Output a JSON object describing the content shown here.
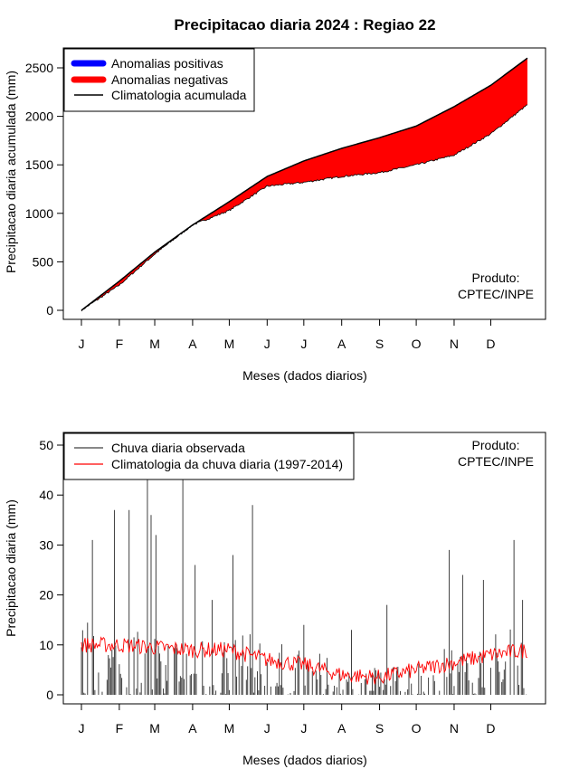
{
  "title": "Precipitacao diaria 2024 : Regiao 22",
  "credit": {
    "line1": "Produto:",
    "line2": "CPTEC/INPE"
  },
  "month_labels": [
    "J",
    "F",
    "M",
    "A",
    "M",
    "J",
    "J",
    "A",
    "S",
    "O",
    "N",
    "D"
  ],
  "colors": {
    "positive": "#0000ff",
    "negative": "#ff0000",
    "climatology_line": "#000000",
    "observed_bars": "#404040",
    "climatology_daily": "#ff0000"
  },
  "chart_data": [
    {
      "type": "area",
      "ylabel": "Precipitacao diaria acumulada (mm)",
      "xlabel": "Meses (dados diarios)",
      "ylim": [
        0,
        2600
      ],
      "yticks": [
        0,
        500,
        1000,
        1500,
        2000,
        2500
      ],
      "xlim_days": [
        1,
        366
      ],
      "legend_position": "top-left",
      "legend": [
        {
          "label": "Anomalias positivas",
          "color": "#0000ff",
          "style": "thick-line"
        },
        {
          "label": "Anomalias negativas",
          "color": "#ff0000",
          "style": "thick-line"
        },
        {
          "label": "Climatologia acumulada",
          "color": "#000000",
          "style": "line"
        }
      ],
      "series": [
        {
          "name": "Climatologia acumulada",
          "x_day": [
            1,
            32,
            61,
            92,
            122,
            153,
            183,
            214,
            245,
            275,
            306,
            336,
            366
          ],
          "values": [
            0,
            300,
            600,
            880,
            1120,
            1380,
            1540,
            1670,
            1780,
            1900,
            2100,
            2320,
            2600
          ]
        },
        {
          "name": "observed cumulative",
          "x_day": [
            1,
            32,
            61,
            92,
            122,
            153,
            183,
            214,
            245,
            275,
            306,
            336,
            366
          ],
          "values": [
            0,
            260,
            580,
            880,
            1030,
            1280,
            1320,
            1380,
            1420,
            1500,
            1600,
            1820,
            2120
          ]
        }
      ]
    },
    {
      "type": "bar",
      "ylabel": "Precipitacao diaria (mm)",
      "xlabel": "Meses (dados diarios)",
      "ylim": [
        0,
        50
      ],
      "yticks": [
        0,
        10,
        20,
        30,
        40,
        50
      ],
      "xlim_days": [
        1,
        366
      ],
      "legend_position": "top-left",
      "legend": [
        {
          "label": "Chuva diaria observada",
          "color": "#404040",
          "style": "line"
        },
        {
          "label": "Climatologia da chuva diaria (1997-2014)",
          "color": "#ff0000",
          "style": "line"
        }
      ],
      "peaks": [
        {
          "day": 10,
          "value": 31
        },
        {
          "day": 28,
          "value": 37
        },
        {
          "day": 40,
          "value": 37
        },
        {
          "day": 55,
          "value": 44
        },
        {
          "day": 58,
          "value": 36
        },
        {
          "day": 62,
          "value": 32
        },
        {
          "day": 84,
          "value": 44
        },
        {
          "day": 94,
          "value": 26
        },
        {
          "day": 108,
          "value": 19
        },
        {
          "day": 125,
          "value": 28
        },
        {
          "day": 141,
          "value": 38
        },
        {
          "day": 183,
          "value": 14
        },
        {
          "day": 222,
          "value": 13
        },
        {
          "day": 251,
          "value": 18
        },
        {
          "day": 302,
          "value": 29
        },
        {
          "day": 313,
          "value": 24
        },
        {
          "day": 330,
          "value": 23
        },
        {
          "day": 355,
          "value": 31
        },
        {
          "day": 362,
          "value": 19
        }
      ],
      "climatology_trend": {
        "x_day": [
          1,
          32,
          61,
          92,
          122,
          153,
          183,
          214,
          245,
          275,
          306,
          336,
          366
        ],
        "values": [
          10,
          10,
          9.5,
          9,
          9,
          7,
          6,
          4,
          3.5,
          5,
          6.5,
          8,
          9
        ]
      }
    }
  ]
}
